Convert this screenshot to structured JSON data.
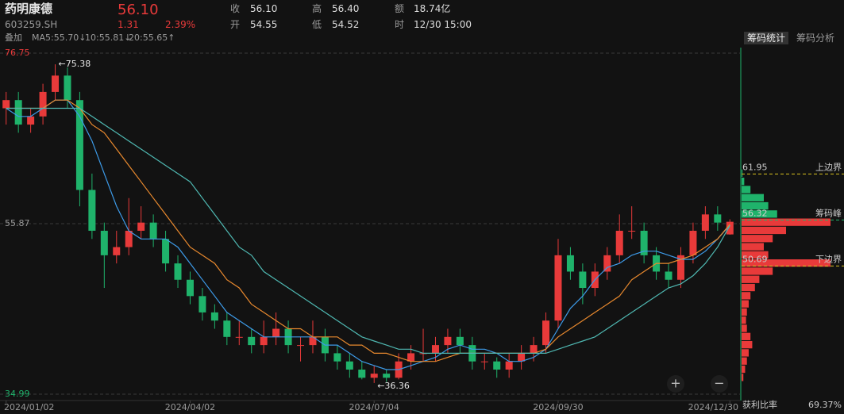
{
  "header": {
    "name": "药明康德",
    "code": "603259.SH",
    "price": "56.10",
    "change": "1.31",
    "change_pct": "2.39%",
    "stats": [
      {
        "label": "收",
        "value": "56.10"
      },
      {
        "label": "开",
        "value": "54.55"
      },
      {
        "label": "高",
        "value": "56.40"
      },
      {
        "label": "低",
        "value": "54.52"
      },
      {
        "label": "额",
        "value": "18.74亿"
      },
      {
        "label": "时",
        "value": "12/30 15:00"
      }
    ],
    "overlay": "叠加",
    "ma_labels": [
      {
        "text": "MA5:55.70↓",
        "color": "#3d9be9"
      },
      {
        "text": "10:55.81↓",
        "color": "#e8892e"
      },
      {
        "text": "20:55.65↑",
        "color": "#4fb8b2"
      }
    ],
    "tabs": [
      "筹码统计",
      "筹码分析"
    ]
  },
  "chart_data": {
    "type": "candlestick",
    "up_color": "#e83a3a",
    "down_color": "#1fb36b",
    "ylim": [
      34.99,
      76.75
    ],
    "yticks": [
      76.75,
      55.87,
      34.99
    ],
    "ytick_colors": [
      "#e83a3a",
      "#9a9a9a",
      "#1fb36b"
    ],
    "grid": true,
    "xlim": [
      0,
      59
    ],
    "xticks": [
      {
        "value": 0,
        "label": "2024/01/02"
      },
      {
        "value": 15,
        "label": "2024/04/02"
      },
      {
        "value": 30,
        "label": "2024/07/04"
      },
      {
        "value": 45,
        "label": "2024/09/30"
      },
      {
        "value": 59,
        "label": "2024/12/30"
      }
    ],
    "candles": [
      [
        70,
        72,
        68,
        71
      ],
      [
        71,
        72,
        67,
        68
      ],
      [
        68,
        70,
        67,
        69
      ],
      [
        69,
        73,
        68,
        72
      ],
      [
        72,
        75.38,
        71,
        74
      ],
      [
        74,
        75,
        70,
        71
      ],
      [
        71,
        72,
        58,
        60
      ],
      [
        60,
        62,
        54,
        55
      ],
      [
        55,
        56,
        48,
        52
      ],
      [
        52,
        55,
        51,
        53
      ],
      [
        53,
        59,
        52,
        55
      ],
      [
        55,
        58,
        54,
        56
      ],
      [
        56,
        57,
        53,
        54
      ],
      [
        54,
        55,
        50,
        51
      ],
      [
        51,
        52,
        48,
        49
      ],
      [
        49,
        50,
        46,
        47
      ],
      [
        47,
        48,
        44,
        45
      ],
      [
        45,
        46,
        43,
        44
      ],
      [
        44,
        45,
        41,
        42
      ],
      [
        42,
        44,
        41,
        42
      ],
      [
        42,
        43,
        40,
        41
      ],
      [
        41,
        44,
        40,
        42
      ],
      [
        42,
        45,
        41,
        43
      ],
      [
        43,
        44,
        40,
        41
      ],
      [
        41,
        42,
        39,
        41
      ],
      [
        41,
        44,
        40,
        42
      ],
      [
        42,
        43,
        39,
        40
      ],
      [
        40,
        41,
        38,
        39
      ],
      [
        39,
        40,
        37,
        38
      ],
      [
        38,
        39,
        36.8,
        37
      ],
      [
        37,
        38.5,
        36.36,
        37.5
      ],
      [
        37.5,
        38,
        36.5,
        37
      ],
      [
        37,
        40,
        36.8,
        39
      ],
      [
        39,
        41,
        38,
        40
      ],
      [
        40,
        43,
        39,
        40
      ],
      [
        40,
        42,
        39,
        41
      ],
      [
        41,
        43,
        40,
        42
      ],
      [
        42,
        43,
        40,
        41
      ],
      [
        41,
        42,
        38,
        39
      ],
      [
        39,
        40,
        38,
        39
      ],
      [
        39,
        39.5,
        37,
        38
      ],
      [
        38,
        40,
        37,
        39
      ],
      [
        39,
        41,
        38,
        40
      ],
      [
        40,
        42,
        39,
        41
      ],
      [
        41,
        45,
        40,
        44
      ],
      [
        44,
        54,
        43,
        52
      ],
      [
        52,
        53,
        49,
        50
      ],
      [
        50,
        51,
        46,
        48
      ],
      [
        48,
        51,
        47,
        50
      ],
      [
        50,
        53,
        49,
        52
      ],
      [
        52,
        57,
        51,
        55
      ],
      [
        55,
        58,
        54,
        55
      ],
      [
        55,
        56,
        51,
        52
      ],
      [
        52,
        53,
        49,
        50
      ],
      [
        50,
        51,
        48,
        49
      ],
      [
        49,
        53,
        48,
        52
      ],
      [
        52,
        56,
        51,
        55
      ],
      [
        55,
        58,
        54,
        57
      ],
      [
        57,
        58,
        55,
        56
      ],
      [
        54.55,
        56.4,
        54.52,
        56.1
      ]
    ],
    "series": [
      {
        "name": "MA5",
        "color": "#3d9be9",
        "values": [
          70,
          69,
          69,
          70,
          71,
          71,
          69,
          66,
          62,
          58,
          55,
          54,
          54,
          54,
          53,
          51,
          49,
          47,
          45,
          44,
          43,
          42,
          42,
          42,
          42,
          42,
          41,
          41,
          40,
          39,
          38.5,
          38,
          38,
          38.5,
          39,
          39.5,
          40.5,
          41,
          40.5,
          40.5,
          40,
          39,
          39,
          39.5,
          40.5,
          43,
          45.5,
          47,
          49,
          50.5,
          51,
          52,
          52.5,
          52.5,
          52,
          51.5,
          51.5,
          52.5,
          54,
          55.7
        ]
      },
      {
        "name": "MA10",
        "color": "#e8892e",
        "values": [
          70,
          70,
          70,
          70,
          71,
          71,
          70,
          68,
          67,
          65,
          63,
          61,
          59,
          57,
          55,
          53,
          52,
          51,
          49,
          48,
          46,
          45,
          44,
          43,
          43,
          42,
          42,
          42,
          41,
          41,
          40,
          40,
          39.5,
          39,
          39,
          39,
          39.5,
          40,
          40,
          40,
          40,
          40,
          40,
          40,
          40.5,
          42,
          43,
          44,
          45,
          46,
          47,
          49,
          50,
          51,
          51,
          51.5,
          52,
          53,
          54,
          55.8
        ]
      },
      {
        "name": "MA20",
        "color": "#4fb8b2",
        "values": [
          70,
          70,
          70,
          70,
          70,
          70,
          70,
          69,
          68,
          67,
          66,
          65,
          64,
          63,
          62,
          61,
          59,
          57,
          55,
          53,
          52,
          50,
          49,
          48,
          47,
          46,
          45,
          44,
          43,
          42,
          41.5,
          41,
          40.5,
          40.5,
          40,
          40,
          40,
          40,
          40,
          40,
          40,
          40,
          40,
          40,
          40,
          40.5,
          41,
          41.5,
          42,
          43,
          44,
          45,
          46,
          47,
          48,
          48.5,
          49.5,
          51,
          53,
          55.65
        ]
      }
    ],
    "annotations": [
      {
        "text": "←75.38",
        "x": 4,
        "y": 75.38
      },
      {
        "text": "←36.36",
        "x": 30,
        "y": 36.36
      }
    ]
  },
  "chips": {
    "prices": [
      37,
      38,
      39,
      40,
      41,
      42,
      43,
      44,
      45,
      46,
      47,
      48,
      49,
      50,
      51,
      52,
      53,
      54,
      55,
      56,
      57,
      58,
      59,
      60,
      61,
      62
    ],
    "values": [
      2,
      4,
      6,
      8,
      12,
      10,
      6,
      5,
      6,
      8,
      10,
      15,
      20,
      35,
      100,
      30,
      25,
      35,
      50,
      100,
      40,
      30,
      25,
      10,
      3,
      1
    ],
    "levels": [
      {
        "label": "上边界",
        "value": 61.95,
        "color": "#d9c21f"
      },
      {
        "label": "筹码峰",
        "value": 56.32,
        "color": "#1fb36b"
      },
      {
        "label": "下边界",
        "value": 50.69,
        "color": "#d9c21f"
      }
    ],
    "profit_label": "获利比率",
    "profit_ratio": "69.37%"
  }
}
